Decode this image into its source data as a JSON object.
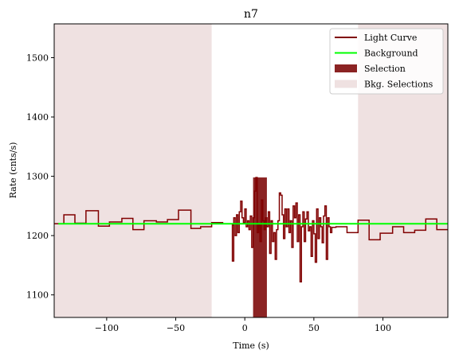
{
  "chart_data": {
    "type": "line",
    "title": "n7",
    "xlabel": "Time (s)",
    "ylabel": "Rate (cnts/s)",
    "xlim": [
      -138,
      147
    ],
    "ylim": [
      1062,
      1557
    ],
    "xticks": [
      -100,
      -50,
      0,
      50,
      100
    ],
    "xtick_labels": [
      "−100",
      "−50",
      "0",
      "50",
      "100"
    ],
    "yticks": [
      1100,
      1200,
      1300,
      1400,
      1500
    ],
    "ytick_labels": [
      "1100",
      "1200",
      "1300",
      "1400",
      "1500"
    ],
    "grid": false,
    "legend_position": "top-right",
    "legend": [
      {
        "label": "Light Curve",
        "kind": "line",
        "color": "#800000"
      },
      {
        "label": "Background",
        "kind": "line",
        "color": "#00ff00"
      },
      {
        "label": "Selection",
        "kind": "patch",
        "color": "#8b2323"
      },
      {
        "label": "Bkg. Selections",
        "kind": "patch",
        "color": "#efe1e1"
      }
    ],
    "background": {
      "x": [
        -135,
        147
      ],
      "y": [
        1220,
        1220
      ],
      "color": "#00ff00"
    },
    "bkg_selections": [
      {
        "x0": -138,
        "x1": -24,
        "color": "#efe1e1"
      },
      {
        "x0": 82,
        "x1": 147,
        "color": "#efe1e1"
      }
    ],
    "source_selection": {
      "x0": 6,
      "x1": 16,
      "color": "#8b2323"
    },
    "light_curve": {
      "color": "#800000",
      "x": [
        -138,
        -131,
        -123,
        -115,
        -106,
        -98,
        -89,
        -81,
        -73,
        -64,
        -56,
        -48,
        -39,
        -32,
        -24,
        -16,
        -8,
        -9,
        -8,
        -7,
        -6,
        -5,
        -4,
        -3,
        -2,
        -1,
        0,
        1,
        2,
        3,
        4,
        5,
        6,
        7,
        8,
        9,
        10,
        11,
        12,
        13,
        14,
        15,
        16,
        17,
        18,
        19,
        20,
        21,
        22,
        23,
        24,
        25,
        26,
        27,
        28,
        29,
        30,
        31,
        32,
        33,
        34,
        35,
        36,
        37,
        38,
        39,
        40,
        41,
        42,
        43,
        44,
        45,
        46,
        47,
        48,
        49,
        50,
        51,
        52,
        53,
        54,
        55,
        56,
        57,
        58,
        59,
        60,
        61,
        62,
        63,
        66,
        74,
        82,
        90,
        98,
        107,
        115,
        123,
        131,
        139,
        147
      ],
      "y": [
        1220,
        1235,
        1221,
        1242,
        1216,
        1223,
        1229,
        1210,
        1225,
        1223,
        1227,
        1243,
        1212,
        1215,
        1222,
        1220,
        1218,
        1157,
        1230,
        1200,
        1235,
        1205,
        1240,
        1258,
        1230,
        1222,
        1245,
        1215,
        1225,
        1210,
        1233,
        1180,
        1230,
        1275,
        1298,
        1205,
        1218,
        1190,
        1260,
        1225,
        1210,
        1230,
        1215,
        1240,
        1170,
        1225,
        1190,
        1205,
        1160,
        1210,
        1225,
        1272,
        1268,
        1235,
        1195,
        1245,
        1215,
        1245,
        1205,
        1225,
        1180,
        1250,
        1230,
        1255,
        1190,
        1235,
        1122,
        1215,
        1240,
        1190,
        1228,
        1240,
        1208,
        1215,
        1165,
        1225,
        1203,
        1155,
        1245,
        1195,
        1230,
        1215,
        1188,
        1233,
        1250,
        1160,
        1230,
        1215,
        1205,
        1214,
        1215,
        1205,
        1226,
        1193,
        1204,
        1215,
        1205,
        1209,
        1228,
        1210,
        1210
      ]
    }
  }
}
